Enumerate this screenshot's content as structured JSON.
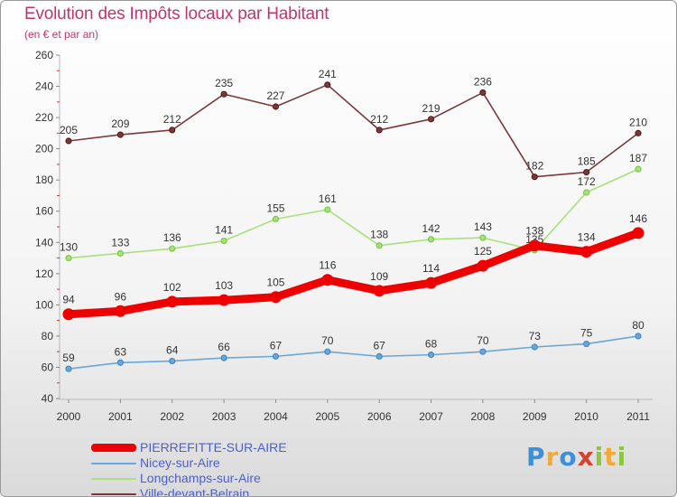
{
  "header": {
    "title": "Evolution des Impôts locaux par Habitant",
    "subtitle": "(en € et par an)"
  },
  "chart_data": {
    "type": "line",
    "categories": [
      "2000",
      "2001",
      "2002",
      "2003",
      "2004",
      "2005",
      "2006",
      "2007",
      "2008",
      "2009",
      "2010",
      "2011"
    ],
    "ylim": [
      40,
      260
    ],
    "yticks": [
      40,
      60,
      80,
      100,
      120,
      140,
      160,
      180,
      200,
      220,
      240,
      260
    ],
    "grid": false,
    "legend_placement": "bottom-left",
    "series": [
      {
        "name": "PIERREFITTE-SUR-AIRE",
        "color": "#ee0000",
        "highlight": true,
        "values": [
          94,
          96,
          102,
          103,
          105,
          116,
          109,
          114,
          125,
          138,
          134,
          146
        ]
      },
      {
        "name": "Nicey-sur-Aire",
        "color": "#6aa6d6",
        "marker": "#3f8ac9",
        "highlight": false,
        "values": [
          59,
          63,
          64,
          66,
          67,
          70,
          67,
          68,
          70,
          73,
          75,
          80
        ]
      },
      {
        "name": "Longchamps-sur-Aire",
        "color": "#a8e07a",
        "marker": "#7cc94a",
        "highlight": false,
        "values": [
          130,
          133,
          136,
          141,
          155,
          161,
          138,
          142,
          143,
          135,
          172,
          187
        ]
      },
      {
        "name": "Ville-devant-Belrain",
        "color": "#7a3a3a",
        "marker": "#5a1e1e",
        "highlight": false,
        "values": [
          205,
          209,
          212,
          235,
          227,
          241,
          212,
          219,
          236,
          182,
          185,
          210
        ]
      }
    ]
  },
  "logo": {
    "letters": [
      "P",
      "r",
      "o",
      "x",
      "i",
      "t",
      "i"
    ],
    "colors": [
      "#3d8fd8",
      "#f2a93b",
      "#3d8fd8",
      "#d8412f",
      "#8cc63e",
      "#f2a93b",
      "#8cc63e"
    ]
  }
}
